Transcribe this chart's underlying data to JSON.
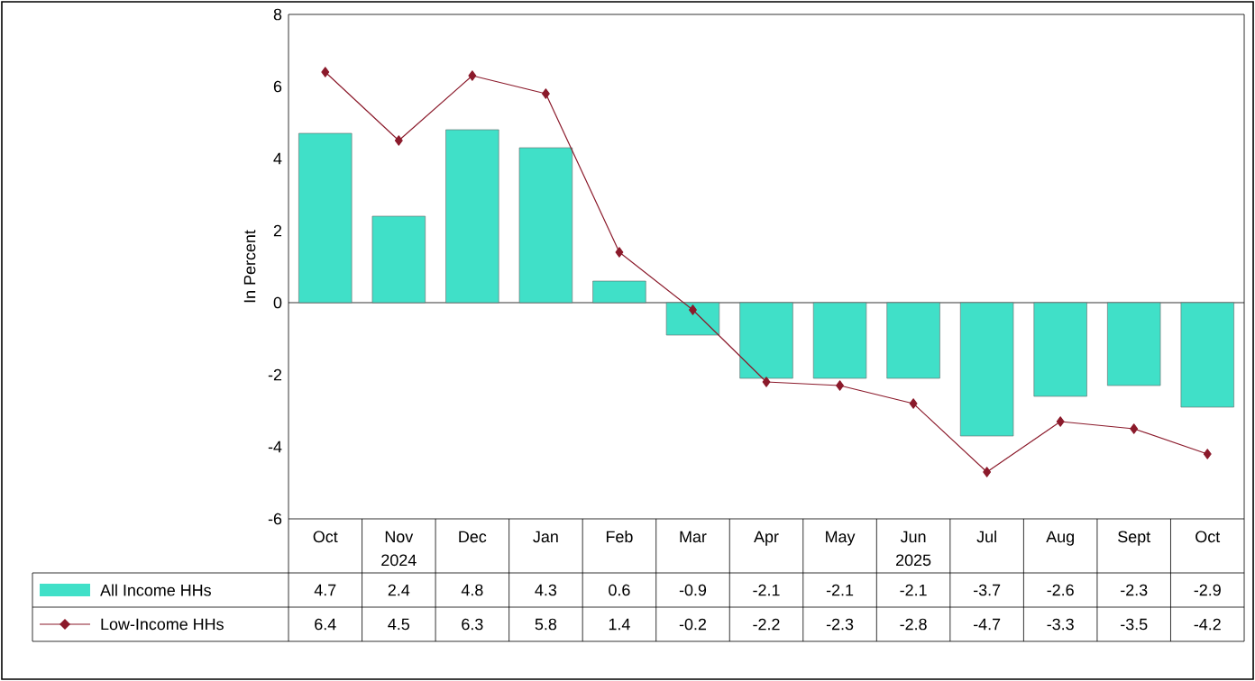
{
  "chart_data": {
    "type": "bar",
    "ylabel": "In Percent",
    "categories": [
      "Oct",
      "Nov",
      "Dec",
      "Jan",
      "Feb",
      "Mar",
      "Apr",
      "May",
      "Jun",
      "Jul",
      "Aug",
      "Sept",
      "Oct"
    ],
    "series": [
      {
        "name": "All Income HHs",
        "color": "#40e0c8",
        "values": [
          4.7,
          2.4,
          4.8,
          4.3,
          0.6,
          -0.9,
          -2.1,
          -2.1,
          -2.1,
          -3.7,
          -2.6,
          -2.3,
          -2.9
        ]
      },
      {
        "name": "Low-Income HHs",
        "type": "line",
        "color": "#8b1a2b",
        "marker": "diamond",
        "values": [
          6.4,
          4.5,
          6.3,
          5.8,
          1.4,
          -0.2,
          -2.2,
          -2.3,
          -2.8,
          -4.7,
          -3.3,
          -3.5,
          -4.2
        ]
      }
    ],
    "ylim": [
      -6,
      8
    ],
    "yticks": [
      -6,
      -4,
      -2,
      0,
      2,
      4,
      6,
      8
    ],
    "legend": "bottom",
    "data_labels": true,
    "annotations": [
      "2024",
      "2025"
    ]
  }
}
